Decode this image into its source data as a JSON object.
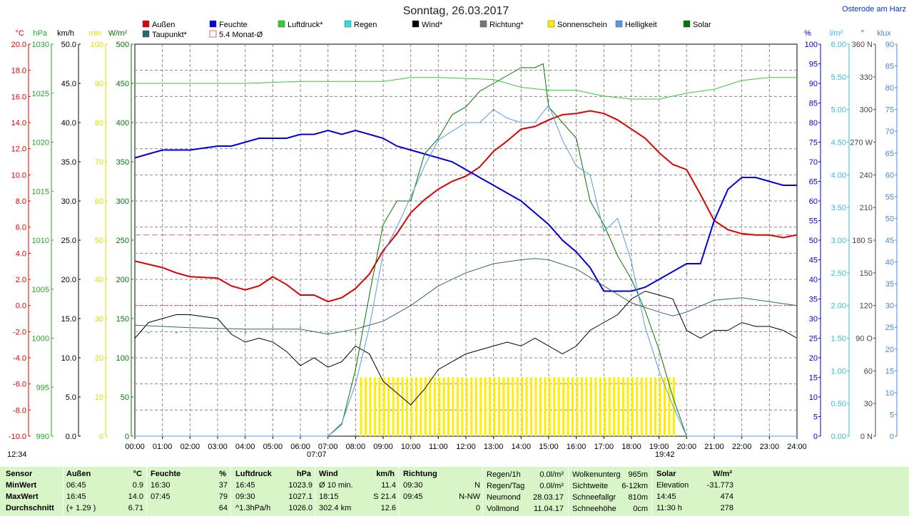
{
  "title": "Sonntag, 26.03.2017",
  "location": "Osterode am Harz",
  "sunrise_label": "07:07",
  "sunset_label": "19:42",
  "moonrise_label": "12:34",
  "legend": [
    {
      "label": "Außen",
      "color": "#dd0000"
    },
    {
      "label": "Feuchte",
      "color": "#0000dd"
    },
    {
      "label": "Luftdruck*",
      "color": "#33cc33"
    },
    {
      "label": "Regen",
      "color": "#33dddd"
    },
    {
      "label": "Wind*",
      "color": "#000000"
    },
    {
      "label": "Richtung*",
      "color": "#777777"
    },
    {
      "label": "Sonnenschein",
      "color": "#ffee00"
    },
    {
      "label": "Helligkeit",
      "color": "#5599ee"
    },
    {
      "label": "Solar",
      "color": "#007700"
    },
    {
      "label": "Taupunkt*",
      "color": "#336666"
    },
    {
      "label": "5.4 Monat-Ø",
      "color": "#ee6666"
    }
  ],
  "axes_left": [
    {
      "unit": "°C",
      "color": "#dd0000",
      "ticks": [
        "20.0",
        "18.0",
        "16.0",
        "14.0",
        "12.0",
        "10.0",
        "8.0",
        "6.0",
        "4.0",
        "2.0",
        "0.0",
        "-2.0",
        "-4.0",
        "-6.0",
        "-8.0",
        "-10.0"
      ]
    },
    {
      "unit": "hPa",
      "color": "#22aa22",
      "ticks": [
        "1030",
        "1025",
        "1020",
        "1015",
        "1010",
        "1005",
        "1000",
        "995",
        "990"
      ]
    },
    {
      "unit": "km/h",
      "color": "#000000",
      "ticks": [
        "50.0",
        "45.0",
        "40.0",
        "35.0",
        "30.0",
        "25.0",
        "20.0",
        "15.0",
        "10.0",
        "5.0",
        "0.0"
      ]
    },
    {
      "unit": "min",
      "color": "#dddd00",
      "ticks": [
        "100",
        "90",
        "80",
        "70",
        "60",
        "50",
        "40",
        "30",
        "20",
        "10",
        "0"
      ]
    },
    {
      "unit": "W/m²",
      "color": "#007700",
      "ticks": [
        "500",
        "450",
        "400",
        "350",
        "300",
        "250",
        "200",
        "150",
        "100",
        "50",
        "0"
      ]
    }
  ],
  "axes_right": [
    {
      "unit": "%",
      "color": "#0000cc",
      "ticks": [
        "100",
        "95",
        "90",
        "85",
        "80",
        "75",
        "70",
        "65",
        "60",
        "55",
        "50",
        "45",
        "40",
        "35",
        "30",
        "25",
        "20",
        "15",
        "10",
        "5",
        "0"
      ]
    },
    {
      "unit": "l/m²",
      "color": "#33bbdd",
      "ticks": [
        "6.00",
        "5.50",
        "5.00",
        "4.50",
        "4.00",
        "3.50",
        "3.00",
        "2.50",
        "2.00",
        "1.50",
        "1.00",
        "0.50",
        "0.00"
      ]
    },
    {
      "unit": "°",
      "color": "#444444",
      "ticks": [
        "360 N",
        "330",
        "300",
        "270 W",
        "240",
        "210",
        "180 S",
        "150",
        "120",
        "90 O",
        "60",
        "30",
        "0 N"
      ]
    },
    {
      "unit": "klux",
      "color": "#4488cc",
      "ticks": [
        "90",
        "85",
        "80",
        "75",
        "70",
        "65",
        "60",
        "55",
        "50",
        "45",
        "40",
        "35",
        "30",
        "25",
        "20",
        "15",
        "10",
        "5",
        "0"
      ]
    }
  ],
  "x_ticks": [
    "00:00",
    "01:00",
    "02:00",
    "03:00",
    "04:00",
    "05:00",
    "06:00",
    "07:00",
    "08:00",
    "09:00",
    "10:00",
    "11:00",
    "12:00",
    "13:00",
    "14:00",
    "15:00",
    "16:00",
    "17:00",
    "18:00",
    "19:00",
    "20:00",
    "21:00",
    "22:00",
    "23:00",
    "24:00"
  ],
  "chart_data": {
    "type": "line",
    "x_unit": "hour of day",
    "xlim": [
      0,
      24
    ],
    "series": [
      {
        "name": "Außen",
        "unit": "°C",
        "ylim": [
          -10,
          20
        ],
        "color": "#dd0000",
        "x": [
          0,
          1,
          1.5,
          2,
          3,
          3.5,
          4,
          4.5,
          5,
          5.5,
          6,
          6.5,
          7,
          7.5,
          8,
          8.5,
          9,
          9.5,
          10,
          10.5,
          11,
          11.5,
          12,
          12.5,
          13,
          13.5,
          14,
          14.5,
          15,
          15.5,
          16,
          16.5,
          17,
          17.5,
          18,
          18.5,
          19,
          19.5,
          20,
          20.5,
          21,
          21.5,
          22,
          22.5,
          23,
          23.5,
          24
        ],
        "y": [
          3.4,
          2.9,
          2.5,
          2.2,
          2.1,
          1.5,
          1.2,
          1.5,
          2.2,
          1.6,
          0.8,
          0.8,
          0.3,
          0.6,
          1.3,
          2.4,
          4.2,
          5.5,
          7.1,
          8.1,
          8.9,
          9.5,
          9.9,
          10.6,
          11.8,
          12.6,
          13.5,
          13.7,
          14.2,
          14.6,
          14.7,
          14.9,
          14.7,
          14.2,
          13.5,
          12.8,
          11.7,
          10.8,
          10.4,
          8.5,
          6.5,
          5.8,
          5.5,
          5.4,
          5.4,
          5.2,
          5.4
        ]
      },
      {
        "name": "Feuchte",
        "unit": "%",
        "ylim": [
          0,
          100
        ],
        "color": "#0000dd",
        "x": [
          0,
          0.5,
          1,
          1.5,
          2,
          3,
          3.5,
          4,
          4.5,
          5,
          5.5,
          6,
          6.5,
          7,
          7.5,
          8,
          8.5,
          9,
          9.5,
          10,
          10.5,
          11,
          11.5,
          12,
          12.5,
          13,
          13.5,
          14,
          14.5,
          15,
          15.5,
          16,
          16.5,
          17,
          17.5,
          18,
          18.5,
          19,
          19.5,
          20,
          20.5,
          21,
          21.5,
          22,
          22.5,
          23,
          23.5,
          24
        ],
        "y": [
          71,
          72,
          73,
          73,
          73,
          74,
          74,
          75,
          76,
          76,
          76,
          77,
          77,
          78,
          77,
          78,
          77,
          76,
          74,
          73,
          72,
          71,
          70,
          68,
          66,
          64,
          62,
          60,
          57,
          54,
          50,
          47,
          43,
          37,
          37,
          37,
          38,
          40,
          42,
          44,
          44,
          55,
          63,
          66,
          66,
          65,
          64,
          64
        ]
      },
      {
        "name": "Luftdruck*",
        "unit": "hPa",
        "ylim": [
          990,
          1030
        ],
        "color": "#33cc33",
        "x": [
          0,
          2,
          4,
          6,
          8,
          9,
          10,
          11,
          12,
          13,
          14,
          15,
          16,
          17,
          18,
          19,
          19.5,
          20,
          21,
          22,
          23,
          24
        ],
        "y": [
          1026.0,
          1026.0,
          1026.0,
          1026.2,
          1026.2,
          1026.2,
          1026.6,
          1026.6,
          1026.5,
          1026.4,
          1025.6,
          1025.3,
          1025.3,
          1024.7,
          1024.4,
          1024.4,
          1024.7,
          1025.0,
          1025.4,
          1026.3,
          1026.6,
          1026.6
        ]
      },
      {
        "name": "Wind*",
        "unit": "km/h",
        "ylim": [
          0,
          50
        ],
        "color": "#000000",
        "x": [
          0,
          0.5,
          1,
          1.5,
          2,
          3,
          3.5,
          4,
          4.5,
          5,
          5.5,
          6,
          6.5,
          7,
          7.5,
          8,
          8.5,
          9,
          9.5,
          10,
          10.5,
          11,
          11.5,
          12,
          12.5,
          13,
          13.5,
          14,
          14.5,
          15,
          15.5,
          16,
          16.5,
          17,
          17.5,
          18,
          18.5,
          19,
          19.5,
          20,
          20.5,
          21,
          21.5,
          22,
          22.5,
          23,
          23.5,
          24
        ],
        "y": [
          12.5,
          14.5,
          15.0,
          15.5,
          15.5,
          15.0,
          13.0,
          12.0,
          12.5,
          12.0,
          10.8,
          9.0,
          10.0,
          8.8,
          9.5,
          11.5,
          10.5,
          7.0,
          5.5,
          4.0,
          6.0,
          8.5,
          9.5,
          10.5,
          11.0,
          11.5,
          12.0,
          11.5,
          12.5,
          11.5,
          10.5,
          11.5,
          13.5,
          14.5,
          15.5,
          17.5,
          18.5,
          18.0,
          17.5,
          13.5,
          12.5,
          13.5,
          13.5,
          14.5,
          14.0,
          14.0,
          13.5,
          12.5
        ]
      },
      {
        "name": "Taupunkt*",
        "unit": "°C",
        "ylim": [
          -10,
          20
        ],
        "color": "#336666",
        "x": [
          0,
          2,
          4,
          6,
          7,
          8,
          9,
          10,
          11,
          12,
          13,
          14,
          14.5,
          15,
          16,
          17,
          18,
          19,
          19.5,
          20,
          21,
          22,
          23,
          24
        ],
        "y": [
          -1.5,
          -1.7,
          -1.8,
          -1.8,
          -2.2,
          -1.8,
          -1.2,
          0.0,
          1.5,
          2.5,
          3.2,
          3.5,
          3.6,
          3.5,
          2.8,
          1.5,
          0.2,
          -0.5,
          -0.8,
          -0.5,
          0.4,
          0.6,
          0.3,
          0.0
        ]
      },
      {
        "name": "Solar",
        "unit": "W/m²",
        "ylim": [
          0,
          500
        ],
        "color": "#007700",
        "x": [
          0,
          7,
          7.5,
          8,
          8.5,
          9,
          9.5,
          10,
          10.5,
          11,
          11.5,
          12,
          12.5,
          13,
          13.5,
          14,
          14.5,
          14.8,
          15,
          15.5,
          16,
          16.5,
          17,
          17.5,
          18,
          18.5,
          19,
          19.5,
          20,
          24
        ],
        "y": [
          0,
          0,
          15,
          85,
          180,
          270,
          300,
          300,
          360,
          380,
          410,
          420,
          440,
          450,
          460,
          470,
          470,
          475,
          420,
          400,
          380,
          300,
          270,
          230,
          200,
          160,
          110,
          50,
          0,
          0
        ]
      },
      {
        "name": "Helligkeit",
        "unit": "klux",
        "ylim": [
          0,
          90
        ],
        "color": "#5599ee",
        "x": [
          0,
          7,
          7.5,
          8,
          8.5,
          9,
          9.5,
          10,
          10.5,
          11,
          11.5,
          12,
          12.5,
          13,
          13.5,
          14,
          14.5,
          15,
          15.5,
          16,
          16.5,
          17,
          17.5,
          18,
          18.5,
          19,
          19.5,
          20,
          24
        ],
        "y": [
          0,
          0,
          3,
          12,
          25,
          42,
          48,
          55,
          62,
          68,
          70,
          72,
          72,
          75,
          73,
          72,
          72,
          76,
          68,
          62,
          60,
          47,
          50,
          40,
          25,
          15,
          7,
          0,
          0
        ]
      },
      {
        "name": "Richtung*",
        "unit": "°",
        "ylim": [
          0,
          360
        ],
        "color": "#777777",
        "x": [
          0.5,
          1.5,
          3,
          4,
          5,
          6,
          7,
          8,
          9,
          10,
          11,
          12,
          13,
          14,
          15,
          16,
          17,
          18,
          19,
          20,
          21,
          22,
          23,
          24
        ],
        "y": [
          95,
          95,
          90,
          95,
          100,
          100,
          95,
          95,
          80,
          75,
          80,
          300,
          300,
          310,
          300,
          300,
          290,
          220,
          200,
          150,
          130,
          110,
          110,
          90
        ]
      },
      {
        "name": "Sonnenschein",
        "unit": "min",
        "ylim": [
          0,
          100
        ],
        "color": "#ffee00",
        "x": [
          8.2,
          19.6
        ],
        "y": [
          15,
          15
        ]
      }
    ],
    "reference_lines": [
      {
        "name": "5.4 Monat-Ø",
        "unit": "°C",
        "value": 5.4,
        "color": "#ee6666"
      },
      {
        "name": "0 °C",
        "unit": "°C",
        "value": 0,
        "color": "#cc33cc"
      }
    ]
  },
  "table": {
    "sensor": {
      "hdr": "Sensor",
      "rows": [
        "MinWert",
        "MaxWert",
        "Durchschnitt"
      ]
    },
    "aussen": {
      "hdr": "Außen",
      "unit": "°C",
      "rows": [
        [
          "06:45",
          "0.9"
        ],
        [
          "16:45",
          "14.0"
        ],
        [
          "(+ 1.29 )",
          "6.71"
        ]
      ]
    },
    "feuchte": {
      "hdr": "Feuchte",
      "unit": "%",
      "rows": [
        [
          "16:30",
          "37"
        ],
        [
          "07:45",
          "79"
        ],
        [
          "",
          "64"
        ]
      ]
    },
    "luftdruck": {
      "hdr": "Luftdruck",
      "unit": "hPa",
      "rows": [
        [
          "16:45",
          "1023.9"
        ],
        [
          "09:30",
          "1027.1"
        ],
        [
          "^1.3hPa/h",
          "1026.0"
        ]
      ]
    },
    "wind": {
      "hdr": "Wind",
      "unit": "km/h",
      "rows": [
        [
          "Ø 10 min.",
          "11.4"
        ],
        [
          "18:15",
          "S 21.4"
        ],
        [
          "302.4 km",
          "12.6"
        ]
      ]
    },
    "richtung": {
      "hdr": "Richtung",
      "rows": [
        [
          "09:30",
          "N"
        ],
        [
          "09:45",
          "N-NW"
        ],
        [
          "",
          "0"
        ]
      ]
    },
    "regen": {
      "rows": [
        [
          "Regen/1h",
          "0.0l/m²"
        ],
        [
          "Regen/Tag",
          "0.0l/m²"
        ],
        [
          "Neumond",
          "28.03.17"
        ],
        [
          "Vollmond",
          "11.04.17"
        ]
      ]
    },
    "wolken": {
      "rows": [
        [
          "Wolkenunterg",
          "965m"
        ],
        [
          "Sichtweite",
          "6-12km"
        ],
        [
          "Schneefallgr",
          "810m"
        ],
        [
          "Schneehöhe",
          "0cm"
        ]
      ]
    },
    "solar": {
      "hdr": "Solar",
      "unit": "W/m²",
      "rows": [
        [
          "Elevation",
          "-31.773"
        ],
        [
          "14:45",
          "474"
        ],
        [
          "11:30 h",
          "278"
        ]
      ]
    }
  }
}
